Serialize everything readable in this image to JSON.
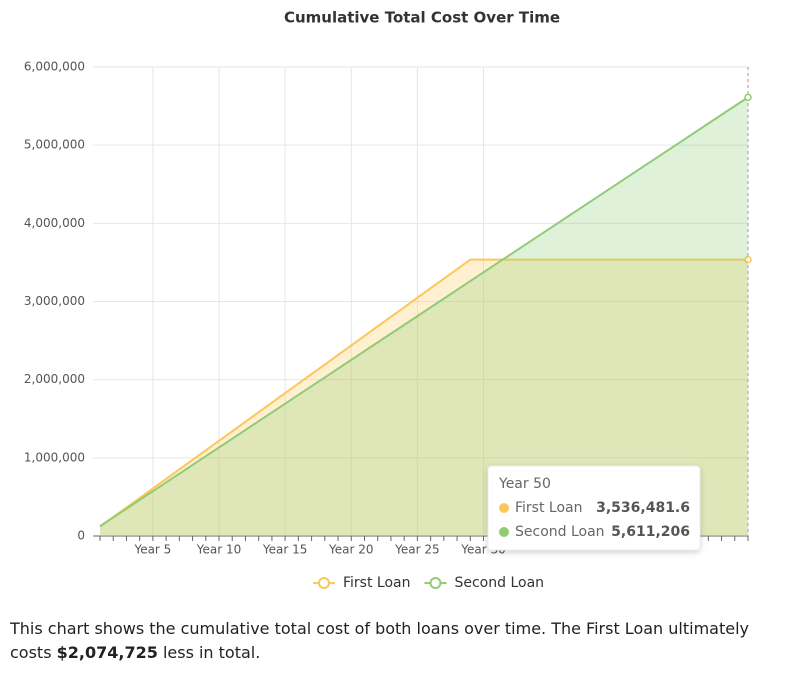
{
  "chart_data": {
    "type": "area-line",
    "title": "Cumulative Total Cost Over Time",
    "categories": [
      null,
      null,
      null,
      null,
      "Year 5",
      null,
      null,
      null,
      null,
      "Year 10",
      null,
      null,
      null,
      null,
      "Year 15",
      null,
      null,
      null,
      null,
      "Year 20",
      null,
      null,
      null,
      null,
      "Year 25",
      null,
      null,
      null,
      null,
      "Year 30",
      null,
      null,
      null,
      null,
      null,
      null,
      null,
      null,
      null,
      null,
      null,
      null,
      null,
      null,
      null,
      null,
      null,
      null,
      null,
      null
    ],
    "series": [
      {
        "name": "First Loan",
        "color": "#fac858",
        "values": [
          120000,
          242000,
          364000,
          486000,
          608000,
          730000,
          852000,
          974000,
          1096000,
          1218000,
          1340000,
          1462000,
          1584000,
          1706000,
          1828000,
          1950000,
          2072000,
          2194000,
          2316000,
          2438000,
          2560000,
          2682000,
          2804000,
          2926000,
          3048000,
          3170000,
          3292000,
          3414000,
          3536481.6,
          3536481.6,
          3536481.6,
          3536481.6,
          3536481.6,
          3536481.6,
          3536481.6,
          3536481.6,
          3536481.6,
          3536481.6,
          3536481.6,
          3536481.6,
          3536481.6,
          3536481.6,
          3536481.6,
          3536481.6,
          3536481.6,
          3536481.6,
          3536481.6,
          3536481.6,
          3536481.6,
          3536481.6
        ]
      },
      {
        "name": "Second Loan",
        "color": "#91cc75",
        "values": [
          125000,
          237000,
          349000,
          461000,
          573000,
          685000,
          797000,
          909000,
          1021000,
          1133000,
          1245000,
          1357000,
          1469000,
          1581000,
          1693000,
          1805000,
          1917000,
          2029000,
          2141000,
          2253000,
          2365000,
          2477000,
          2589000,
          2701000,
          2813000,
          2925000,
          3037000,
          3149000,
          3261000,
          3373000,
          3485000,
          3597000,
          3709000,
          3821000,
          3933000,
          4045000,
          4157000,
          4269000,
          4381000,
          4493000,
          4605000,
          4717000,
          4829000,
          4941000,
          5053000,
          5165000,
          5277000,
          5389000,
          5501000,
          5611206
        ]
      }
    ],
    "ylim": [
      0,
      6000000
    ],
    "yticks": [
      0,
      {
        "value": 1000000,
        "label": "1,000,000"
      },
      {
        "value": 2000000,
        "label": "2,000,000"
      },
      {
        "value": 3000000,
        "label": "3,000,000"
      },
      {
        "value": 4000000,
        "label": "4,000,000"
      },
      {
        "value": 5000000,
        "label": "5,000,000"
      },
      {
        "value": 6000000,
        "label": "6,000,000"
      }
    ],
    "grid": true,
    "legend": "bottom",
    "tooltip": {
      "title": "Year 50",
      "rows": [
        {
          "name": "First Loan",
          "value": "3,536,481.6"
        },
        {
          "name": "Second Loan",
          "value": "5,611,206"
        }
      ]
    }
  },
  "caption": {
    "before": "This chart shows the cumulative total cost of both loans over time. The First Loan ultimately costs",
    "amount": "$2,074,725",
    "after": "less in total."
  }
}
